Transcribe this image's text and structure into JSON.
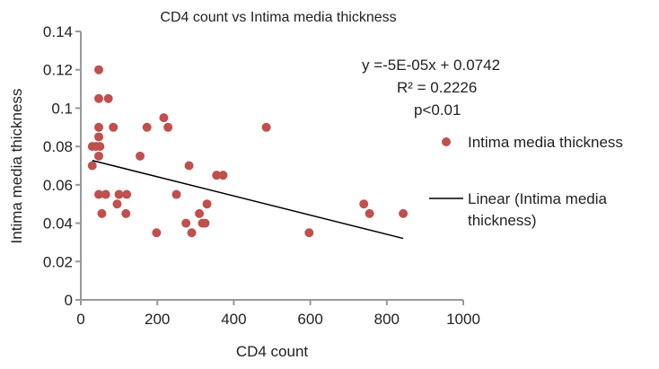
{
  "chart_data": {
    "type": "scatter",
    "title": "CD4 count vs Intima media thickness",
    "xlabel": "CD4 count",
    "ylabel": "Intima media thickness",
    "xlim": [
      0,
      1000
    ],
    "ylim": [
      0,
      0.14
    ],
    "xticks": [
      0,
      200,
      400,
      600,
      800,
      1000
    ],
    "xtick_labels": [
      "0",
      "200",
      "400",
      "600",
      "800",
      "1000"
    ],
    "yticks": [
      0,
      0.02,
      0.04,
      0.06,
      0.08,
      0.1,
      0.12,
      0.14
    ],
    "ytick_labels": [
      "0",
      "0.02",
      "0.04",
      "0.06",
      "0.08",
      "0.1",
      "0.12",
      "0.14"
    ],
    "grid": false,
    "series": [
      {
        "name": "Intima media thickness",
        "type": "scatter",
        "color": "#c0504d",
        "points": [
          [
            47,
            0.12
          ],
          [
            47,
            0.105
          ],
          [
            72,
            0.105
          ],
          [
            47,
            0.09
          ],
          [
            85,
            0.09
          ],
          [
            173,
            0.09
          ],
          [
            217,
            0.095
          ],
          [
            228,
            0.09
          ],
          [
            485,
            0.09
          ],
          [
            47,
            0.085
          ],
          [
            30,
            0.08
          ],
          [
            40,
            0.08
          ],
          [
            50,
            0.08
          ],
          [
            47,
            0.075
          ],
          [
            155,
            0.075
          ],
          [
            30,
            0.07
          ],
          [
            283,
            0.07
          ],
          [
            47,
            0.055
          ],
          [
            65,
            0.055
          ],
          [
            100,
            0.055
          ],
          [
            120,
            0.055
          ],
          [
            250,
            0.055
          ],
          [
            355,
            0.065
          ],
          [
            372,
            0.065
          ],
          [
            95,
            0.05
          ],
          [
            330,
            0.05
          ],
          [
            740,
            0.05
          ],
          [
            55,
            0.045
          ],
          [
            118,
            0.045
          ],
          [
            310,
            0.045
          ],
          [
            755,
            0.045
          ],
          [
            843,
            0.045
          ],
          [
            275,
            0.04
          ],
          [
            318,
            0.04
          ],
          [
            325,
            0.04
          ],
          [
            198,
            0.035
          ],
          [
            290,
            0.035
          ],
          [
            597,
            0.035
          ]
        ]
      },
      {
        "name": "Linear (Intima media thickness)",
        "type": "line",
        "color": "#000000",
        "equation": {
          "slope": -5e-05,
          "intercept": 0.0742
        },
        "x_range": [
          30,
          843
        ]
      }
    ],
    "annotations": {
      "equation": "y =-5E-05x + 0.0742",
      "r_squared": "R² = 0.2226",
      "p_value": "p<0.01"
    },
    "legend": {
      "placement": "right",
      "entries": [
        "Intima media thickness",
        "Linear (Intima media",
        "thickness)"
      ]
    }
  }
}
